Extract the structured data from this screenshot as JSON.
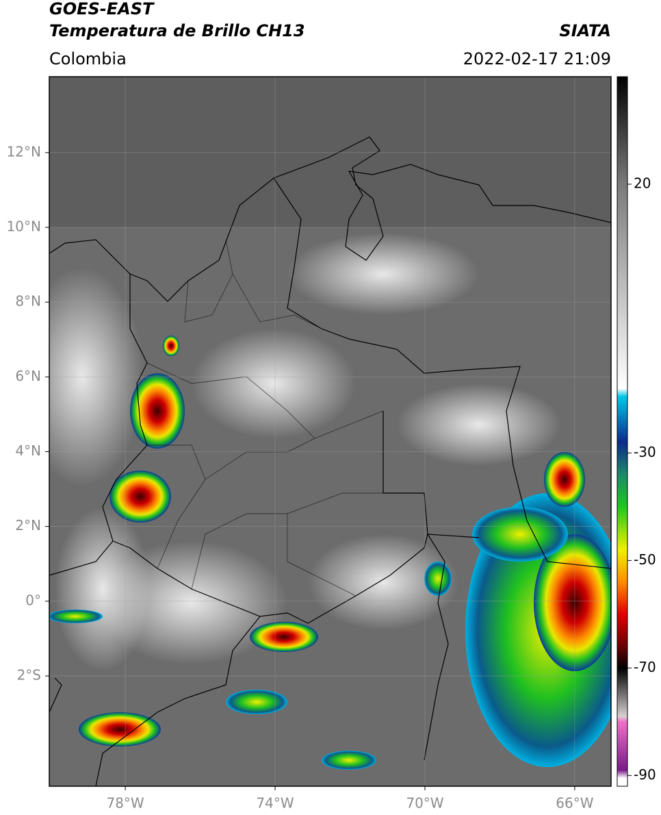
{
  "header": {
    "satellite": "GOES-EAST",
    "product": "Temperatura de Brillo CH13",
    "institution": "SIATA",
    "region": "Colombia",
    "timestamp": "2022-02-17 21:09"
  },
  "map": {
    "xlim": [
      -80.03,
      -65.03
    ],
    "ylim": [
      -4.95,
      14.03
    ],
    "grid": true,
    "xticks": [
      {
        "value": -78,
        "label": "78°W"
      },
      {
        "value": -74,
        "label": "74°W"
      },
      {
        "value": -70,
        "label": "70°W"
      },
      {
        "value": -66,
        "label": "66°W"
      }
    ],
    "yticks": [
      {
        "value": 12,
        "label": "12°N"
      },
      {
        "value": 10,
        "label": "10°N"
      },
      {
        "value": 8,
        "label": "8°N"
      },
      {
        "value": 6,
        "label": "6°N"
      },
      {
        "value": 4,
        "label": "4°N"
      },
      {
        "value": 2,
        "label": "2°N"
      },
      {
        "value": 0,
        "label": "0°"
      },
      {
        "value": -2,
        "label": "2°S"
      }
    ]
  },
  "colorbar": {
    "lim": [
      -92,
      40
    ],
    "ticks": [
      20,
      -30,
      -50,
      -70,
      -90
    ],
    "stops": [
      {
        "value": 40,
        "color": "#000000"
      },
      {
        "value": 20,
        "color": "#7a7a7a"
      },
      {
        "value": -18,
        "color": "#ffffff"
      },
      {
        "value": -19.5,
        "color": "#00c8e8"
      },
      {
        "value": -28,
        "color": "#0a2a8c"
      },
      {
        "value": -34,
        "color": "#1a8a6a"
      },
      {
        "value": -40,
        "color": "#1ec81e"
      },
      {
        "value": -48,
        "color": "#f0f000"
      },
      {
        "value": -54,
        "color": "#ff8c00"
      },
      {
        "value": -60,
        "color": "#e00000"
      },
      {
        "value": -66,
        "color": "#6a0000"
      },
      {
        "value": -70,
        "color": "#000000"
      },
      {
        "value": -79,
        "color": "#d8d0d0"
      },
      {
        "value": -80,
        "color": "#f070c8"
      },
      {
        "value": -89,
        "color": "#7a1a8a"
      },
      {
        "value": -90.5,
        "color": "#ffffff"
      }
    ]
  }
}
